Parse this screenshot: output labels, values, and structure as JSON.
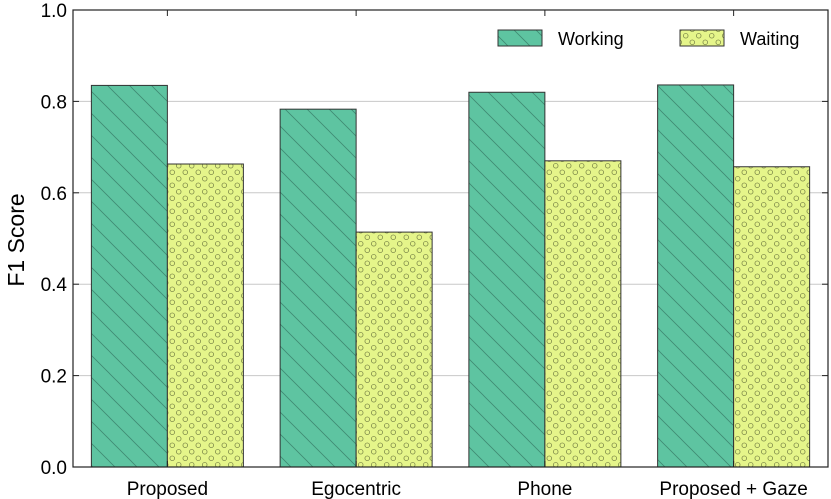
{
  "chart_data": {
    "type": "bar",
    "title": "",
    "xlabel": "",
    "ylabel": "F1 Score",
    "ylim": [
      0.0,
      1.0
    ],
    "yticks": [
      0.0,
      0.2,
      0.4,
      0.6,
      0.8,
      1.0
    ],
    "ytick_labels": [
      "0.0",
      "0.2",
      "0.4",
      "0.6",
      "0.8",
      "1.0"
    ],
    "categories": [
      "Proposed",
      "Egocentric",
      "Phone",
      "Proposed + Gaze"
    ],
    "series": [
      {
        "name": "Working",
        "values": [
          0.835,
          0.783,
          0.82,
          0.836
        ],
        "color": "#5ec4a1",
        "pattern": "diagonal-hatch"
      },
      {
        "name": "Waiting",
        "values": [
          0.663,
          0.514,
          0.67,
          0.657
        ],
        "color": "#e5f58a",
        "pattern": "small-circles"
      }
    ],
    "grid": "horizontal",
    "legend_position": "top-right"
  }
}
